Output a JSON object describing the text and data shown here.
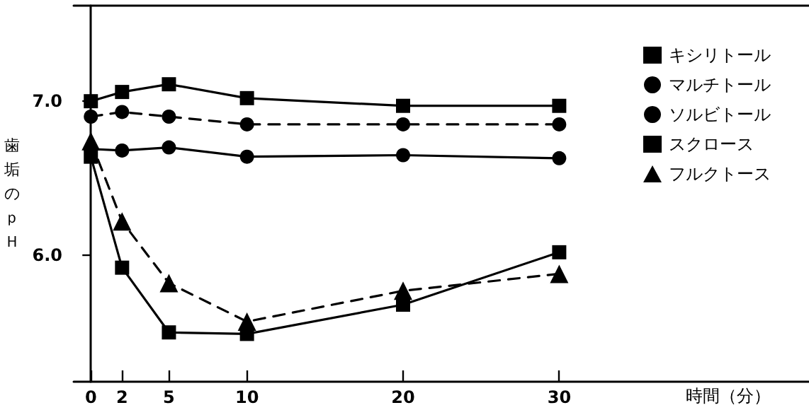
{
  "chart_data": {
    "type": "line",
    "xlabel": "時間（分）",
    "ylabel": "歯垢のｐＨ",
    "x": [
      0,
      2,
      5,
      10,
      20,
      30
    ],
    "xlim": [
      -1.1,
      46
    ],
    "xticks": [
      0,
      2,
      5,
      10,
      20,
      30
    ],
    "ylim": [
      5.18,
      7.62
    ],
    "yticks": [
      {
        "value": 6,
        "label": "6.0"
      },
      {
        "value": 7,
        "label": "7.0"
      }
    ],
    "grid": false,
    "legend": "right",
    "series": [
      {
        "name": "キシリトール",
        "color": "#000000",
        "marker": "square",
        "line_style": "solid",
        "values": [
          7.0,
          7.06,
          7.11,
          7.02,
          6.97,
          6.97
        ]
      },
      {
        "name": "マルチトール",
        "color": "#000000",
        "marker": "circle",
        "line_style": "dashed",
        "values": [
          6.9,
          6.93,
          6.9,
          6.85,
          6.85,
          6.85
        ]
      },
      {
        "name": "ソルビトール",
        "color": "#000000",
        "marker": "circle",
        "line_style": "solid",
        "values": [
          6.69,
          6.68,
          6.7,
          6.64,
          6.65,
          6.63
        ]
      },
      {
        "name": "スクロース",
        "color": "#000000",
        "marker": "square",
        "line_style": "solid",
        "values": [
          6.64,
          5.92,
          5.5,
          5.49,
          5.68,
          6.02
        ]
      },
      {
        "name": "フルクトース",
        "color": "#000000",
        "marker": "triangle",
        "line_style": "dashed",
        "values": [
          6.74,
          6.22,
          5.82,
          5.57,
          5.77,
          5.88
        ]
      }
    ]
  }
}
